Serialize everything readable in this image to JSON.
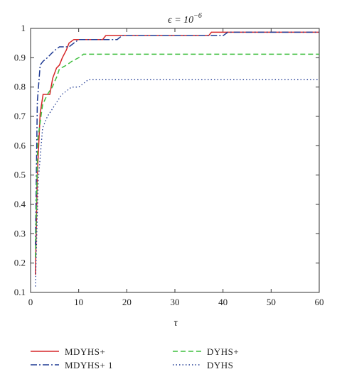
{
  "chart_data": {
    "type": "line",
    "title": "ϵ = 10",
    "title_exponent": "−6",
    "xlabel": "τ",
    "ylabel": "",
    "xlim": [
      0,
      60
    ],
    "ylim": [
      0.1,
      1.0
    ],
    "xticks": [
      0,
      10,
      20,
      30,
      40,
      50,
      60
    ],
    "yticks": [
      0.1,
      0.2,
      0.3,
      0.4,
      0.5,
      0.6,
      0.7,
      0.8,
      0.9,
      1
    ],
    "grid": false,
    "legend_position": "below",
    "series": [
      {
        "name": "MDYHS+",
        "color": "#d62728",
        "style": "solid",
        "points": [
          [
            1,
            0.16
          ],
          [
            1.4,
            0.5
          ],
          [
            2,
            0.71
          ],
          [
            2.6,
            0.775
          ],
          [
            4,
            0.775
          ],
          [
            4.6,
            0.83
          ],
          [
            5.4,
            0.865
          ],
          [
            6,
            0.875
          ],
          [
            6.6,
            0.9
          ],
          [
            7.4,
            0.925
          ],
          [
            8,
            0.95
          ],
          [
            9,
            0.962
          ],
          [
            15,
            0.962
          ],
          [
            15.6,
            0.975
          ],
          [
            37,
            0.975
          ],
          [
            37.6,
            0.987
          ],
          [
            60,
            0.987
          ]
        ]
      },
      {
        "name": "MDYHS+ 1",
        "color": "#1f3a93",
        "style": "dashdot",
        "points": [
          [
            1,
            0.26
          ],
          [
            1.4,
            0.75
          ],
          [
            2,
            0.875
          ],
          [
            2.6,
            0.888
          ],
          [
            3.5,
            0.9
          ],
          [
            4.2,
            0.912
          ],
          [
            5,
            0.925
          ],
          [
            6,
            0.937
          ],
          [
            8,
            0.937
          ],
          [
            9,
            0.95
          ],
          [
            10,
            0.962
          ],
          [
            18,
            0.962
          ],
          [
            19,
            0.975
          ],
          [
            40,
            0.975
          ],
          [
            41,
            0.987
          ],
          [
            60,
            0.987
          ]
        ]
      },
      {
        "name": "DYHS+",
        "color": "#3fbf3f",
        "style": "dashed",
        "points": [
          [
            1,
            0.22
          ],
          [
            1.5,
            0.62
          ],
          [
            2.5,
            0.74
          ],
          [
            3.5,
            0.775
          ],
          [
            4.5,
            0.8
          ],
          [
            5.5,
            0.837
          ],
          [
            6,
            0.862
          ],
          [
            7.5,
            0.875
          ],
          [
            8.5,
            0.887
          ],
          [
            10,
            0.9
          ],
          [
            11,
            0.912
          ],
          [
            60,
            0.912
          ]
        ]
      },
      {
        "name": "DYHS",
        "color": "#1f3a93",
        "style": "dotted",
        "points": [
          [
            1,
            0.12
          ],
          [
            1.6,
            0.48
          ],
          [
            2.5,
            0.66
          ],
          [
            3.5,
            0.7
          ],
          [
            4.5,
            0.725
          ],
          [
            5.5,
            0.75
          ],
          [
            6.5,
            0.775
          ],
          [
            7.5,
            0.787
          ],
          [
            8.5,
            0.8
          ],
          [
            10,
            0.8
          ],
          [
            11,
            0.812
          ],
          [
            12,
            0.825
          ],
          [
            60,
            0.825
          ]
        ]
      }
    ]
  },
  "legend": {
    "items": [
      {
        "label": "MDYHS+",
        "color": "#d62728",
        "style": "solid"
      },
      {
        "label": "DYHS+",
        "color": "#3fbf3f",
        "style": "dashed"
      },
      {
        "label": "MDYHS+ 1",
        "color": "#1f3a93",
        "style": "dashdot"
      },
      {
        "label": "DYHS",
        "color": "#1f3a93",
        "style": "dotted"
      }
    ]
  }
}
